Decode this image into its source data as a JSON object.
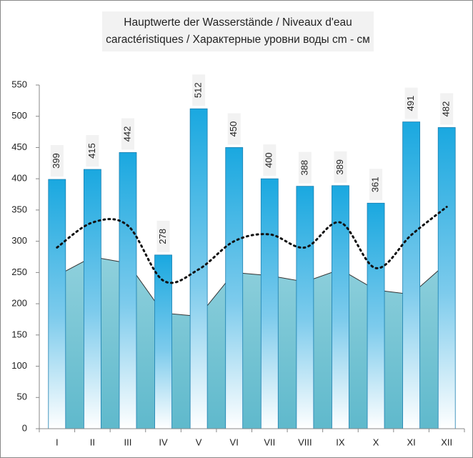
{
  "chart_data": {
    "type": "bar",
    "title": "Hauptwerte der Wasserstände / Niveaux d'eau caractéristiques / Характерные уровни воды cm - см",
    "categories": [
      "I",
      "II",
      "III",
      "IV",
      "V",
      "VI",
      "VII",
      "VIII",
      "IX",
      "X",
      "XI",
      "XII"
    ],
    "series": [
      {
        "type": "area",
        "color": "#7fcad8",
        "values": [
          245,
          275,
          265,
          185,
          180,
          250,
          245,
          235,
          255,
          222,
          215,
          265
        ]
      },
      {
        "type": "bar",
        "color": "#2ab0e4",
        "values": [
          399,
          415,
          442,
          278,
          512,
          450,
          400,
          388,
          389,
          361,
          491,
          482
        ]
      },
      {
        "type": "line",
        "color": "#111111",
        "values": [
          290,
          330,
          325,
          237,
          255,
          300,
          311,
          290,
          330,
          257,
          310,
          355
        ]
      }
    ],
    "ylim": [
      0,
      550
    ],
    "yticks": [
      0,
      50,
      100,
      150,
      200,
      250,
      300,
      350,
      400,
      450,
      500,
      550
    ]
  }
}
